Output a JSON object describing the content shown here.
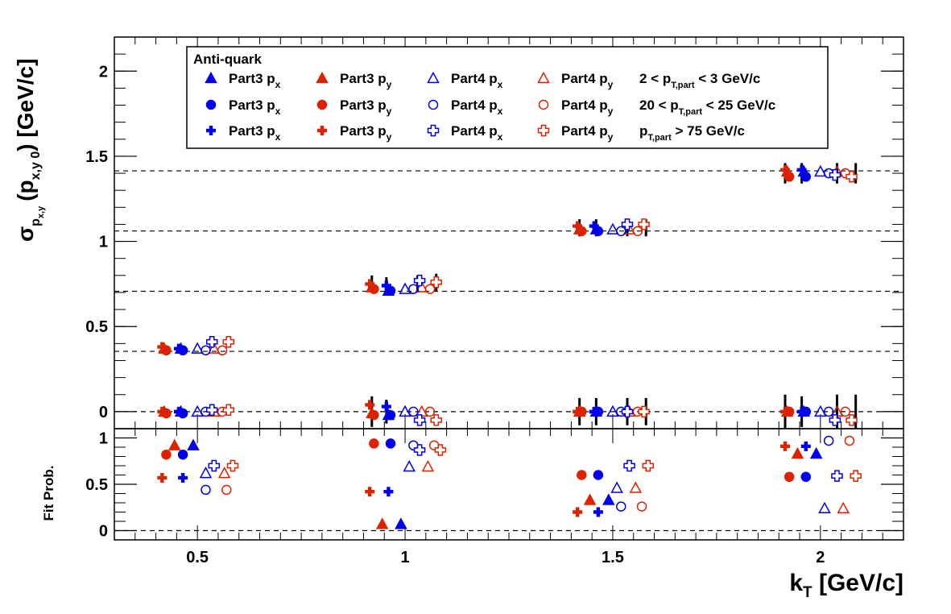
{
  "chart_data": {
    "type": "scatter",
    "x_axis": {
      "label": "k",
      "label_sub": "T",
      "label_unit": " [GeV/c]",
      "range": [
        0.3,
        2.2
      ],
      "ticks": [
        "0.5",
        "1",
        "1.5",
        "2"
      ]
    },
    "top_panel": {
      "y_axis": {
        "label_main": "σ",
        "label_sub": "p",
        "label_subsub": "x,y",
        "label_rest": "(p",
        "label_rest_sub": "x,y 0",
        "label_unit": ") [GeV/c]",
        "range": [
          -0.1,
          2.2
        ],
        "ticks": [
          "0",
          "0.5",
          "1",
          "1.5",
          "2"
        ]
      },
      "dashed_lines": [
        0,
        0.354,
        0.707,
        1.061,
        1.414
      ],
      "series": [
        {
          "marker": "triangle",
          "fill": "filled",
          "color": "#0000ee",
          "x": [
            0.46,
            0.96,
            1.46,
            1.96
          ],
          "y": [
            0.37,
            0.71,
            1.07,
            1.41
          ],
          "zero_y": [
            0.0,
            -0.02,
            0.0,
            0.0
          ]
        },
        {
          "marker": "triangle",
          "fill": "filled",
          "color": "#dd2200",
          "x": [
            0.42,
            0.92,
            1.42,
            1.92
          ],
          "y": [
            0.37,
            0.73,
            1.07,
            1.41
          ],
          "zero_y": [
            0.0,
            -0.01,
            0.0,
            0.0
          ]
        },
        {
          "marker": "triangle",
          "fill": "open",
          "color": "#0000ee",
          "x": [
            0.5,
            1.0,
            1.5,
            2.0
          ],
          "y": [
            0.37,
            0.72,
            1.07,
            1.41
          ],
          "zero_y": [
            0.0,
            0.0,
            0.0,
            0.0
          ]
        },
        {
          "marker": "triangle",
          "fill": "open",
          "color": "#dd2200",
          "x": [
            0.54,
            1.04,
            1.54,
            2.04
          ],
          "y": [
            0.37,
            0.73,
            1.07,
            1.41
          ],
          "zero_y": [
            0.0,
            0.0,
            0.0,
            0.0
          ]
        },
        {
          "marker": "circle",
          "fill": "filled",
          "color": "#0000ee",
          "x": [
            0.465,
            0.965,
            1.465,
            1.965
          ],
          "y": [
            0.36,
            0.71,
            1.06,
            1.38
          ],
          "zero_y": [
            -0.01,
            -0.02,
            0.0,
            0.0
          ]
        },
        {
          "marker": "circle",
          "fill": "filled",
          "color": "#dd2200",
          "x": [
            0.425,
            0.925,
            1.425,
            1.925
          ],
          "y": [
            0.36,
            0.72,
            1.06,
            1.38
          ],
          "zero_y": [
            -0.01,
            -0.02,
            0.0,
            0.0
          ]
        },
        {
          "marker": "circle",
          "fill": "open",
          "color": "#0000ee",
          "x": [
            0.52,
            1.02,
            1.52,
            2.02
          ],
          "y": [
            0.36,
            0.72,
            1.06,
            1.4
          ],
          "zero_y": [
            0.0,
            0.0,
            0.0,
            0.0
          ]
        },
        {
          "marker": "circle",
          "fill": "open",
          "color": "#dd2200",
          "x": [
            0.56,
            1.06,
            1.56,
            2.06
          ],
          "y": [
            0.36,
            0.72,
            1.06,
            1.4
          ],
          "zero_y": [
            0.0,
            0.0,
            0.0,
            0.0
          ]
        },
        {
          "marker": "cross",
          "fill": "filled",
          "color": "#0000ee",
          "x": [
            0.455,
            0.955,
            1.455,
            1.955
          ],
          "y": [
            0.37,
            0.74,
            1.09,
            1.42
          ],
          "zero_y": [
            0.0,
            0.03,
            0.0,
            0.0
          ]
        },
        {
          "marker": "cross",
          "fill": "filled",
          "color": "#dd2200",
          "x": [
            0.415,
            0.915,
            1.415,
            1.915
          ],
          "y": [
            0.38,
            0.75,
            1.09,
            1.42
          ],
          "zero_y": [
            0.0,
            0.04,
            0.0,
            0.0
          ]
        },
        {
          "marker": "cross",
          "fill": "open",
          "color": "#0000ee",
          "x": [
            0.535,
            1.035,
            1.535,
            2.035
          ],
          "y": [
            0.41,
            0.77,
            1.1,
            1.39
          ],
          "zero_y": [
            0.01,
            -0.05,
            0.0,
            -0.05
          ]
        },
        {
          "marker": "cross",
          "fill": "open",
          "color": "#dd2200",
          "x": [
            0.575,
            1.075,
            1.575,
            2.075
          ],
          "y": [
            0.41,
            0.76,
            1.1,
            1.38
          ],
          "zero_y": [
            0.01,
            -0.05,
            0.0,
            -0.05
          ]
        }
      ],
      "error_bars": [
        {
          "x": 0.92,
          "y": 0.75,
          "err": 0.05
        },
        {
          "x": 0.955,
          "y": 0.74,
          "err": 0.05
        },
        {
          "x": 1.03,
          "y": 0.75,
          "err": 0.05
        },
        {
          "x": 1.075,
          "y": 0.76,
          "err": 0.05
        },
        {
          "x": 1.42,
          "y": 1.08,
          "err": 0.05
        },
        {
          "x": 1.46,
          "y": 1.08,
          "err": 0.05
        },
        {
          "x": 1.535,
          "y": 1.08,
          "err": 0.05
        },
        {
          "x": 1.58,
          "y": 1.08,
          "err": 0.05
        },
        {
          "x": 1.915,
          "y": 1.4,
          "err": 0.06
        },
        {
          "x": 1.955,
          "y": 1.4,
          "err": 0.06
        },
        {
          "x": 2.04,
          "y": 1.4,
          "err": 0.06
        },
        {
          "x": 2.085,
          "y": 1.4,
          "err": 0.06
        },
        {
          "x": 0.92,
          "y": 0.0,
          "err": 0.09
        },
        {
          "x": 0.955,
          "y": 0.0,
          "err": 0.07
        },
        {
          "x": 1.42,
          "y": 0.0,
          "err": 0.08
        },
        {
          "x": 1.46,
          "y": 0.0,
          "err": 0.08
        },
        {
          "x": 1.535,
          "y": 0.0,
          "err": 0.08
        },
        {
          "x": 1.58,
          "y": 0.0,
          "err": 0.08
        },
        {
          "x": 1.915,
          "y": 0.0,
          "err": 0.1
        },
        {
          "x": 1.955,
          "y": 0.0,
          "err": 0.09
        },
        {
          "x": 2.04,
          "y": 0.0,
          "err": 0.1
        },
        {
          "x": 2.085,
          "y": 0.0,
          "err": 0.1
        }
      ]
    },
    "bottom_panel": {
      "y_axis": {
        "label": "Fit Prob.",
        "range": [
          -0.1,
          1.1
        ],
        "ticks": [
          "0",
          "0.5",
          "1"
        ]
      },
      "dashed_lines": [
        0
      ],
      "series": [
        {
          "marker": "triangle",
          "fill": "filled",
          "color": "#0000ee",
          "x": [
            0.49,
            0.99,
            1.49,
            1.99
          ],
          "y": [
            0.92,
            0.07,
            0.33,
            0.83
          ]
        },
        {
          "marker": "triangle",
          "fill": "filled",
          "color": "#dd2200",
          "x": [
            0.445,
            0.945,
            1.445,
            1.945
          ],
          "y": [
            0.92,
            0.07,
            0.33,
            0.83
          ]
        },
        {
          "marker": "triangle",
          "fill": "open",
          "color": "#0000ee",
          "x": [
            0.52,
            1.01,
            1.51,
            2.01
          ],
          "y": [
            0.62,
            0.69,
            0.46,
            0.24
          ]
        },
        {
          "marker": "triangle",
          "fill": "open",
          "color": "#dd2200",
          "x": [
            0.565,
            1.055,
            1.555,
            2.055
          ],
          "y": [
            0.62,
            0.69,
            0.46,
            0.24
          ]
        },
        {
          "marker": "circle",
          "fill": "filled",
          "color": "#0000ee",
          "x": [
            0.465,
            0.965,
            1.465,
            1.965
          ],
          "y": [
            0.82,
            0.94,
            0.6,
            0.58
          ]
        },
        {
          "marker": "circle",
          "fill": "filled",
          "color": "#dd2200",
          "x": [
            0.425,
            0.925,
            1.425,
            1.925
          ],
          "y": [
            0.82,
            0.94,
            0.6,
            0.58
          ]
        },
        {
          "marker": "circle",
          "fill": "open",
          "color": "#0000ee",
          "x": [
            0.52,
            1.02,
            1.52,
            2.02
          ],
          "y": [
            0.44,
            0.92,
            0.26,
            0.97
          ]
        },
        {
          "marker": "circle",
          "fill": "open",
          "color": "#dd2200",
          "x": [
            0.57,
            1.07,
            1.57,
            2.07
          ],
          "y": [
            0.44,
            0.92,
            0.26,
            0.97
          ]
        },
        {
          "marker": "cross",
          "fill": "filled",
          "color": "#0000ee",
          "x": [
            0.465,
            0.96,
            1.465,
            1.965
          ],
          "y": [
            0.57,
            0.42,
            0.2,
            0.91
          ]
        },
        {
          "marker": "cross",
          "fill": "filled",
          "color": "#dd2200",
          "x": [
            0.415,
            0.915,
            1.415,
            1.915
          ],
          "y": [
            0.57,
            0.42,
            0.2,
            0.91
          ]
        },
        {
          "marker": "cross",
          "fill": "open",
          "color": "#0000ee",
          "x": [
            0.54,
            1.035,
            1.54,
            2.04
          ],
          "y": [
            0.7,
            0.87,
            0.7,
            0.59
          ]
        },
        {
          "marker": "cross",
          "fill": "open",
          "color": "#dd2200",
          "x": [
            0.585,
            1.085,
            1.585,
            2.085
          ],
          "y": [
            0.7,
            0.87,
            0.7,
            0.59
          ]
        }
      ]
    },
    "legend": {
      "title": "Anti-quark",
      "placement": "top-left",
      "columns": [
        {
          "label": "Part3 p",
          "sub": "x",
          "color": "#0000ee",
          "fill": "filled"
        },
        {
          "label": "Part3 p",
          "sub": "y",
          "color": "#dd2200",
          "fill": "filled"
        },
        {
          "label": "Part4 p",
          "sub": "x",
          "color": "#0000ee",
          "fill": "open"
        },
        {
          "label": "Part4 p",
          "sub": "y",
          "color": "#dd2200",
          "fill": "open"
        }
      ],
      "rows": [
        {
          "marker": "triangle",
          "range_label_pre": "2 < p",
          "range_label_sub": "T,part",
          "range_label_post": " < 3 GeV/c"
        },
        {
          "marker": "circle",
          "range_label_pre": "20 < p",
          "range_label_sub": "T,part",
          "range_label_post": " < 25 GeV/c"
        },
        {
          "marker": "cross",
          "range_label_pre": "p",
          "range_label_sub": "T,part",
          "range_label_post": " > 75 GeV/c"
        }
      ]
    }
  }
}
